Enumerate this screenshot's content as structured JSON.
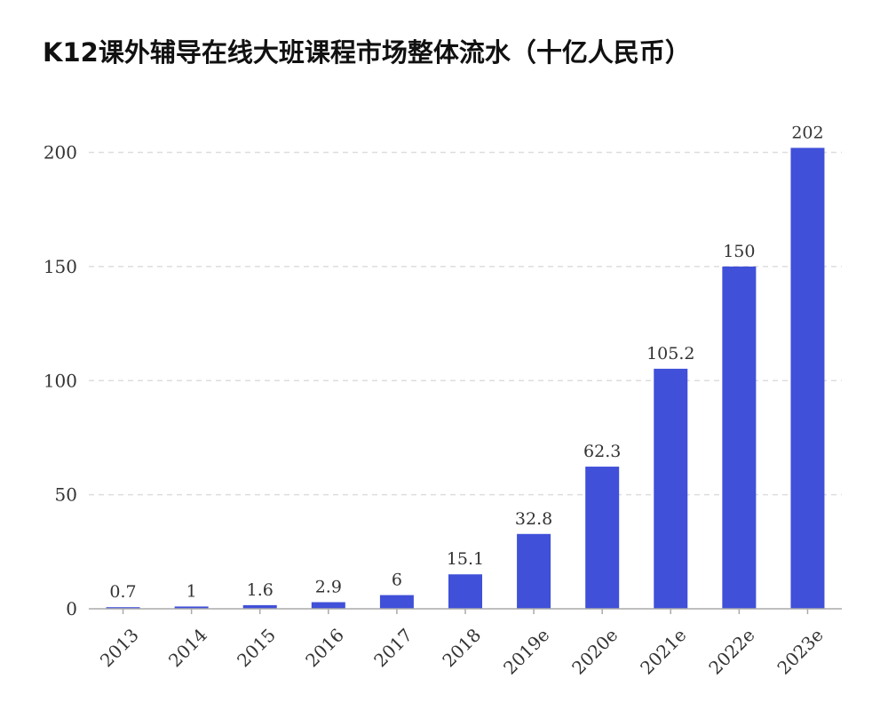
{
  "chart_data": {
    "type": "bar",
    "title": "K12课外辅导在线大班课程市场整体流水（十亿人民币）",
    "categories": [
      "2013",
      "2014",
      "2015",
      "2016",
      "2017",
      "2018",
      "2019e",
      "2020e",
      "2021e",
      "2022e",
      "2023e"
    ],
    "values": [
      0.7,
      1,
      1.6,
      2.9,
      6,
      15.1,
      32.8,
      62.3,
      105.2,
      150,
      202
    ],
    "value_labels": [
      "0.7",
      "1",
      "1.6",
      "2.9",
      "6",
      "15.1",
      "32.8",
      "62.3",
      "105.2",
      "150",
      "202"
    ],
    "y_ticks": [
      "0",
      "50",
      "100",
      "150",
      "200"
    ],
    "ylim": [
      0,
      200
    ],
    "xlabel": "",
    "ylabel": "",
    "grid": true,
    "bar_color": "#4050D8",
    "grid_color": "#DDDDDD",
    "axis_color": "#AAAAAA"
  }
}
